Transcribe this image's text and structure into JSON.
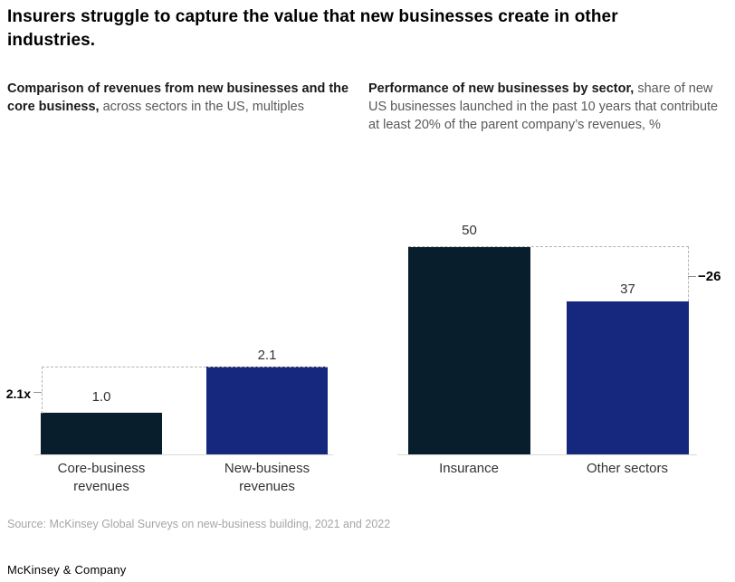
{
  "title": "Insurers struggle to capture the value that new businesses create in other industries.",
  "left_chart": {
    "subtitle_bold": "Comparison of revenues from new businesses and the core business,",
    "subtitle_rest": " across sectors in the US, multiples",
    "axis_annotation": "2.1x",
    "bars": [
      {
        "value_label": "1.0",
        "category_line1": "Core-business",
        "category_line2": "revenues"
      },
      {
        "value_label": "2.1",
        "category_line1": "New-business",
        "category_line2": "revenues"
      }
    ]
  },
  "right_chart": {
    "subtitle_bold": "Performance of new businesses by sector,",
    "subtitle_rest": " share of new US  businesses launched in the past 10 years that contribute at least 20% of the parent company’s revenues, %",
    "difference_annotation": "−26",
    "bars": [
      {
        "value_label": "50",
        "category": "Insurance"
      },
      {
        "value_label": "37",
        "category": "Other sectors"
      }
    ]
  },
  "source": "Source: McKinsey Global Surveys on new-business building, 2021 and 2022",
  "footer": "McKinsey & Company",
  "colors": {
    "dark_bar": "#081E2C",
    "blue_bar": "#15287D",
    "dashed_line": "#b3b3b3",
    "baseline": "#d9d9d9"
  },
  "chart_data": [
    {
      "type": "bar",
      "title": "Comparison of revenues from new businesses and the core business, across sectors in the US, multiples",
      "categories": [
        "Core-business revenues",
        "New-business revenues"
      ],
      "values": [
        1.0,
        2.1
      ],
      "bar_colors": [
        "#081E2C",
        "#15287D"
      ],
      "data_labels": [
        "1.0",
        "2.1"
      ],
      "annotation": "2.1x",
      "ylim": [
        0,
        2.1
      ],
      "grid": false,
      "legend": "none"
    },
    {
      "type": "bar",
      "title": "Performance of new businesses by sector, share of new US businesses launched in the past 10 years that contribute at least 20% of the parent company’s revenues, %",
      "categories": [
        "Insurance",
        "Other sectors"
      ],
      "values": [
        50,
        37
      ],
      "bar_colors": [
        "#081E2C",
        "#15287D"
      ],
      "data_labels": [
        "50",
        "37"
      ],
      "annotation": "−26",
      "ylim": [
        0,
        50
      ],
      "grid": false,
      "legend": "none"
    }
  ]
}
